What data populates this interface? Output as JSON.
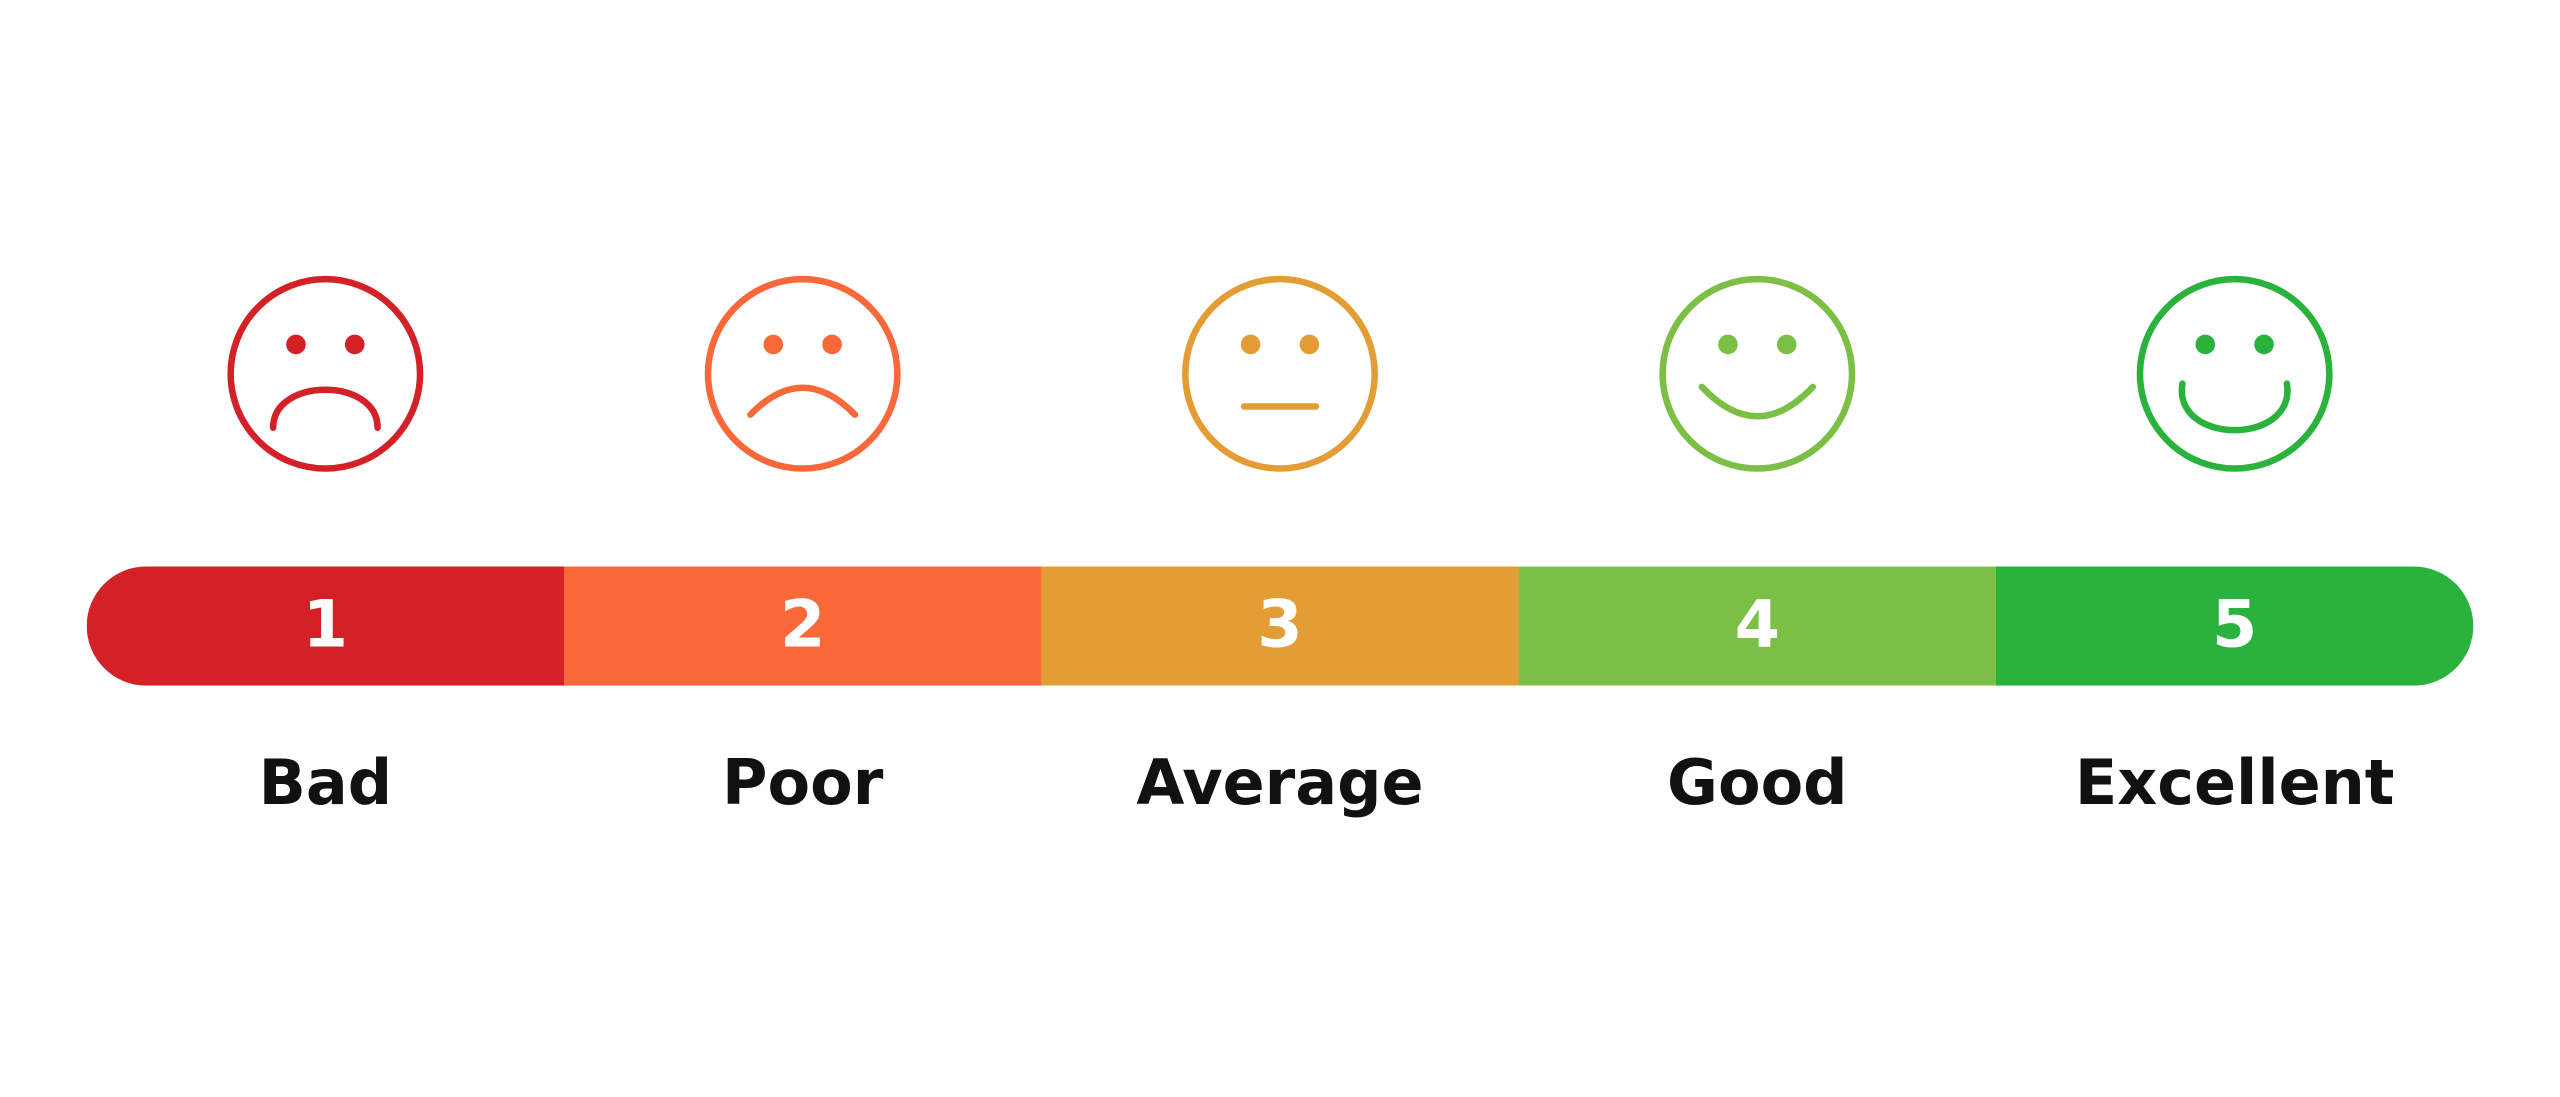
{
  "rating_scale": {
    "items": [
      {
        "number": "1",
        "label": "Bad",
        "color": "#d42027"
      },
      {
        "number": "2",
        "label": "Poor",
        "color": "#f96838"
      },
      {
        "number": "3",
        "label": "Average",
        "color": "#e49d34"
      },
      {
        "number": "4",
        "label": "Good",
        "color": "#7bbf45"
      },
      {
        "number": "5",
        "label": "Excellent",
        "color": "#29b23c"
      }
    ]
  }
}
